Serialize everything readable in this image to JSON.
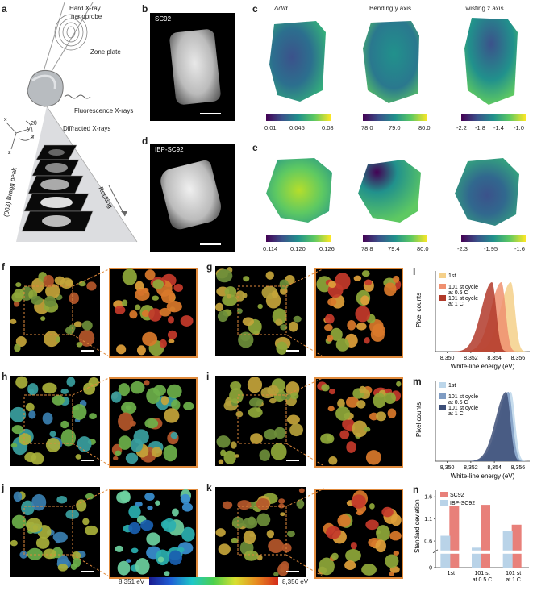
{
  "panel_labels": {
    "a": "a",
    "b": "b",
    "c": "c",
    "d": "d",
    "e": "e",
    "f": "f",
    "g": "g",
    "h": "h",
    "i": "i",
    "j": "j",
    "k": "k",
    "l": "l",
    "m": "m",
    "n": "n"
  },
  "panel_a": {
    "hard_xray": "Hard X-ray",
    "nanoprobe": "nanoprobe",
    "zone_plate": "Zone plate",
    "fluorescence": "Fluorescence X-rays",
    "diffracted": "Diffracted X-rays",
    "two_theta": "2θ",
    "theta": "θ",
    "axis_x": "x",
    "axis_y": "y",
    "axis_z": "z",
    "bragg": "(003) Bragg peak",
    "rocking": "Rocking"
  },
  "panel_b": {
    "sample": "SC92"
  },
  "panel_d": {
    "sample": "IBP-SC92"
  },
  "panel_c": {
    "titles": [
      "Δd/d",
      "Bending y axis",
      "Twisting z axis"
    ],
    "ticks": [
      [
        "0.01",
        "0.045",
        "0.08"
      ],
      [
        "78.0",
        "79.0",
        "80.0"
      ],
      [
        "-2.2",
        "-1.8",
        "-1.4",
        "-1.0"
      ]
    ]
  },
  "panel_e": {
    "ticks": [
      [
        "0.114",
        "0.120",
        "0.126"
      ],
      [
        "78.8",
        "79.4",
        "80.0"
      ],
      [
        "-2.3",
        "-1.95",
        "-1.6"
      ]
    ]
  },
  "energy_bar": {
    "min": "8,351 eV",
    "max": "8,356 eV"
  },
  "chart_data": [
    {
      "type": "area",
      "panel": "l",
      "xlabel": "White-line energy (eV)",
      "ylabel": "Pixel counts",
      "x_ticks": [
        "8,350",
        "8,352",
        "8,354",
        "8,356"
      ],
      "xlim": [
        8349,
        8357
      ],
      "series": [
        {
          "name": "1st",
          "peak": 8355.4,
          "color": "#f5d08a"
        },
        {
          "name": "101 st cycle at 0.5 C",
          "peak": 8354.6,
          "color": "#ef9070"
        },
        {
          "name": "101 st cycle at 1 C",
          "peak": 8353.8,
          "color": "#b13a2a"
        }
      ],
      "legend": [
        {
          "line1": "1st",
          "line2": ""
        },
        {
          "line1": "101 st cycle",
          "line2": "at 0.5 C"
        },
        {
          "line1": "101 st cycle",
          "line2": "at 1 C"
        }
      ]
    },
    {
      "type": "area",
      "panel": "m",
      "xlabel": "White-line energy (eV)",
      "ylabel": "Pixel counts",
      "x_ticks": [
        "8,350",
        "8,352",
        "8,354",
        "8,356"
      ],
      "xlim": [
        8349,
        8357
      ],
      "series": [
        {
          "name": "1st",
          "peak": 8355.4,
          "color": "#bcd6ea"
        },
        {
          "name": "101 st cycle at 0.5 C",
          "peak": 8355.2,
          "color": "#7f9cc3"
        },
        {
          "name": "101 st cycle at 1 C",
          "peak": 8355.0,
          "color": "#3d4f78"
        }
      ],
      "legend": [
        {
          "line1": "1st",
          "line2": ""
        },
        {
          "line1": "101 st cycle",
          "line2": "at 0.5 C"
        },
        {
          "line1": "101 st cycle",
          "line2": "at 1 C"
        }
      ]
    },
    {
      "type": "bar",
      "panel": "n",
      "ylabel": "Standard deviation",
      "y_ticks": [
        "0",
        "0.6",
        "1.1",
        "1.6"
      ],
      "categories": [
        [
          "1st",
          ""
        ],
        [
          "101 st",
          "at 0.5 C"
        ],
        [
          "101 st",
          "at 1 C"
        ]
      ],
      "series": [
        {
          "name": "SC92",
          "color": "#e8807a",
          "values": [
            1.4,
            1.42,
            0.97
          ]
        },
        {
          "name": "IBP-SC92",
          "color": "#b9d3e8",
          "values": [
            0.72,
            0.45,
            0.82
          ]
        }
      ]
    }
  ]
}
